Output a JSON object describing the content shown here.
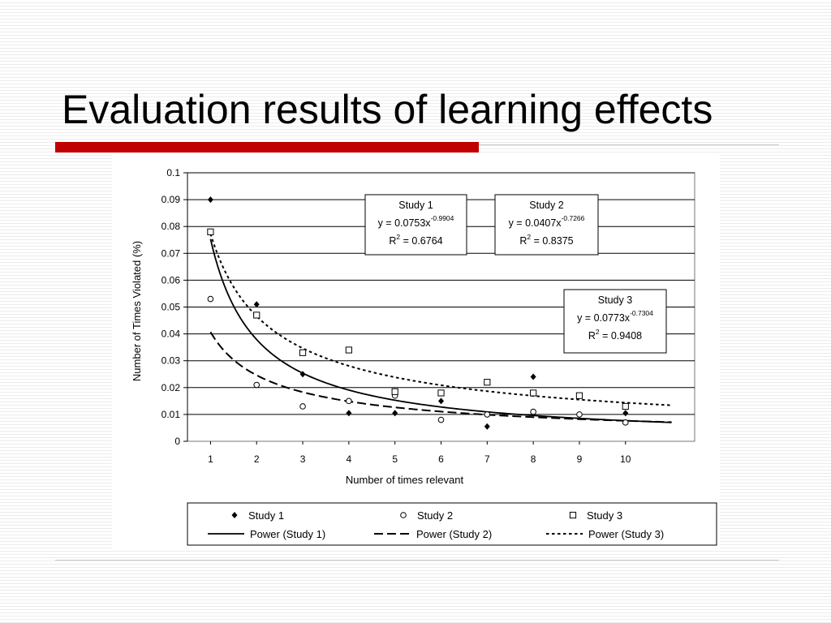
{
  "slide": {
    "title": "Evaluation results of learning effects",
    "accent_color": "#c00000"
  },
  "chart_data": {
    "type": "scatter",
    "xlabel": "Number of times relevant",
    "ylabel": "Number of Times Violated (%)",
    "xlim": [
      0.5,
      11.5
    ],
    "ylim": [
      0,
      0.1
    ],
    "x_ticks": [
      "1",
      "2",
      "3",
      "4",
      "5",
      "6",
      "7",
      "8",
      "9",
      "10"
    ],
    "y_ticks": [
      "0",
      "0.01",
      "0.02",
      "0.03",
      "0.04",
      "0.05",
      "0.06",
      "0.07",
      "0.08",
      "0.09",
      "0.1"
    ],
    "grid": "horizontal",
    "legend_position": "bottom",
    "series": [
      {
        "name": "Study 1",
        "marker": "diamond",
        "points": [
          {
            "x": 1,
            "y": 0.09
          },
          {
            "x": 2,
            "y": 0.051
          },
          {
            "x": 3,
            "y": 0.025
          },
          {
            "x": 4,
            "y": 0.0105
          },
          {
            "x": 5,
            "y": 0.0105
          },
          {
            "x": 6,
            "y": 0.015
          },
          {
            "x": 7,
            "y": 0.0055
          },
          {
            "x": 8,
            "y": 0.024
          },
          {
            "x": 10,
            "y": 0.0105
          }
        ],
        "fit": {
          "legend": "Power (Study 1)",
          "style": "solid",
          "a": 0.0753,
          "b": -0.9904
        }
      },
      {
        "name": "Study 2",
        "marker": "circle",
        "points": [
          {
            "x": 1,
            "y": 0.053
          },
          {
            "x": 2,
            "y": 0.021
          },
          {
            "x": 3,
            "y": 0.013
          },
          {
            "x": 4,
            "y": 0.015
          },
          {
            "x": 5,
            "y": 0.017
          },
          {
            "x": 6,
            "y": 0.008
          },
          {
            "x": 7,
            "y": 0.01
          },
          {
            "x": 8,
            "y": 0.011
          },
          {
            "x": 9,
            "y": 0.01
          },
          {
            "x": 10,
            "y": 0.007
          }
        ],
        "fit": {
          "legend": "Power (Study 2)",
          "style": "dashed",
          "a": 0.0407,
          "b": -0.7266
        }
      },
      {
        "name": "Study 3",
        "marker": "square",
        "points": [
          {
            "x": 1,
            "y": 0.078
          },
          {
            "x": 2,
            "y": 0.047
          },
          {
            "x": 3,
            "y": 0.033
          },
          {
            "x": 4,
            "y": 0.034
          },
          {
            "x": 5,
            "y": 0.0185
          },
          {
            "x": 6,
            "y": 0.018
          },
          {
            "x": 7,
            "y": 0.022
          },
          {
            "x": 8,
            "y": 0.018
          },
          {
            "x": 9,
            "y": 0.017
          },
          {
            "x": 10,
            "y": 0.013
          }
        ],
        "fit": {
          "legend": "Power (Study 3)",
          "style": "dotted",
          "a": 0.0773,
          "b": -0.7304
        }
      }
    ],
    "annotations": [
      {
        "series": "Study 1",
        "title": "Study 1",
        "equation": "y = 0.0753x",
        "exponent": "-0.9904",
        "r2_label": "R",
        "r2_sup": "2",
        "r2_value": " = 0.6764"
      },
      {
        "series": "Study 2",
        "title": "Study 2",
        "equation": "y = 0.0407x",
        "exponent": "-0.7266",
        "r2_label": "R",
        "r2_sup": "2",
        "r2_value": " = 0.8375"
      },
      {
        "series": "Study 3",
        "title": "Study 3",
        "equation": "y = 0.0773x",
        "exponent": "-0.7304",
        "r2_label": "R",
        "r2_sup": "2",
        "r2_value": " = 0.9408"
      }
    ]
  }
}
